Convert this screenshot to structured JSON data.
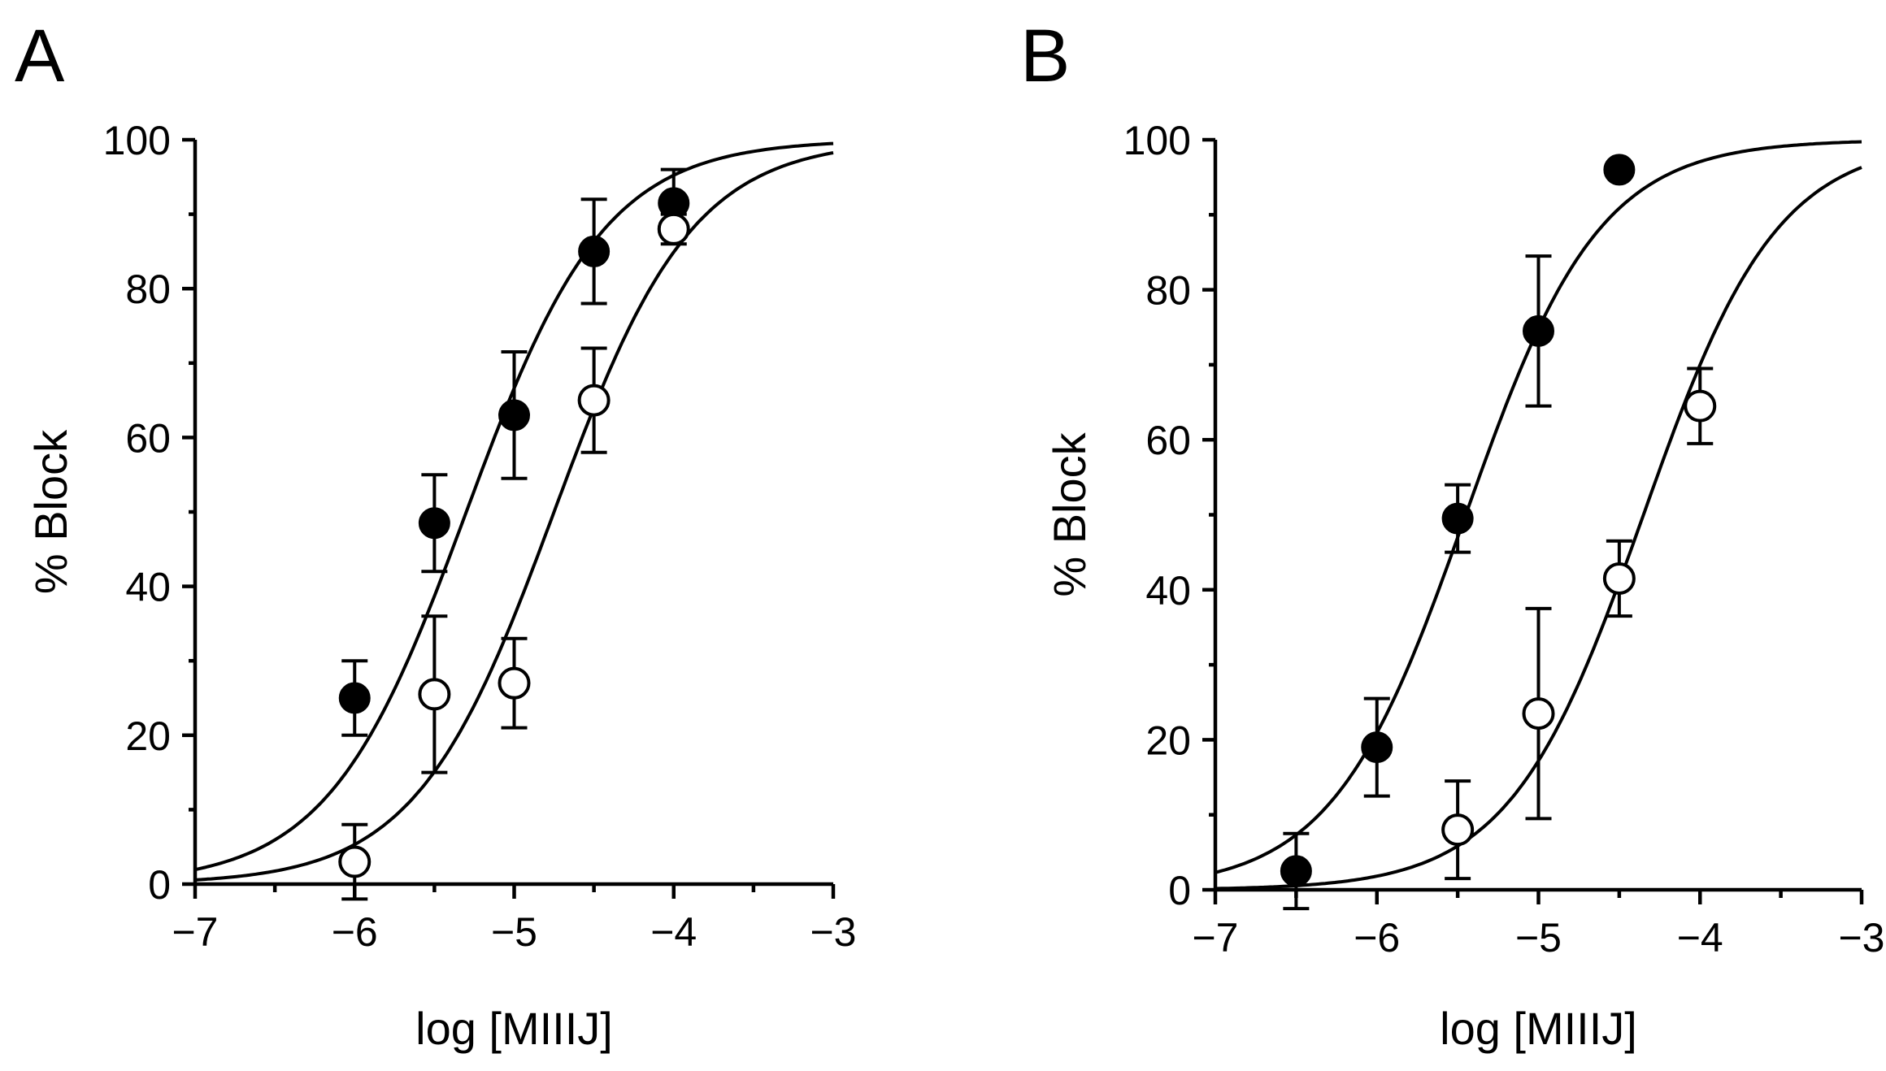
{
  "chart_data": [
    {
      "panel": "A",
      "type": "scatter",
      "xlabel": "log [MIIIJ]",
      "ylabel": "% Block",
      "xlim": [
        -7,
        -3
      ],
      "ylim": [
        0,
        100
      ],
      "xticks": [
        -7,
        -6,
        -5,
        -4,
        -3
      ],
      "yticks": [
        0,
        20,
        40,
        60,
        80,
        100
      ],
      "xtick_labels": [
        "−7",
        "−6",
        "−5",
        "−4",
        "−3"
      ],
      "ytick_labels": [
        "0",
        "20",
        "40",
        "60",
        "80",
        "100"
      ],
      "series": [
        {
          "name": "filled",
          "marker": "filled-circle",
          "x": [
            -6,
            -5.5,
            -5,
            -4.5,
            -4
          ],
          "y": [
            25,
            48.5,
            63,
            85,
            91.5
          ],
          "err": [
            5,
            6.5,
            8.5,
            7,
            4.5
          ],
          "fit": {
            "log_ic50": -5.3,
            "hill": 1.0
          }
        },
        {
          "name": "open",
          "marker": "open-circle",
          "x": [
            -6,
            -5.5,
            -5,
            -4.5,
            -4
          ],
          "y": [
            3,
            25.5,
            27,
            65,
            88
          ],
          "err": [
            5,
            10.5,
            6,
            7,
            2
          ],
          "fit": {
            "log_ic50": -4.75,
            "hill": 1.0
          }
        }
      ]
    },
    {
      "panel": "B",
      "type": "scatter",
      "xlabel": "log [MIIIJ]",
      "ylabel": "% Block",
      "xlim": [
        -7,
        -3
      ],
      "ylim": [
        0,
        100
      ],
      "xticks": [
        -7,
        -6,
        -5,
        -4,
        -3
      ],
      "yticks": [
        0,
        20,
        40,
        60,
        80,
        100
      ],
      "xtick_labels": [
        "−7",
        "−6",
        "−5",
        "−4",
        "−3"
      ],
      "ytick_labels": [
        "0",
        "20",
        "40",
        "60",
        "80",
        "100"
      ],
      "series": [
        {
          "name": "filled",
          "marker": "filled-circle",
          "x": [
            -6.5,
            -6,
            -5.5,
            -5,
            -4.5
          ],
          "y": [
            2.5,
            19,
            49.5,
            74.5,
            96
          ],
          "err": [
            5,
            6.5,
            4.5,
            10,
            0
          ],
          "fit": {
            "log_ic50": -5.45,
            "hill": 1.05
          }
        },
        {
          "name": "open",
          "marker": "open-circle",
          "x": [
            -5.5,
            -5,
            -4.5,
            -4
          ],
          "y": [
            8,
            23.5,
            41.5,
            64.5
          ],
          "err": [
            6.5,
            14,
            5,
            5
          ],
          "fit": {
            "log_ic50": -4.35,
            "hill": 1.05
          }
        }
      ]
    }
  ]
}
